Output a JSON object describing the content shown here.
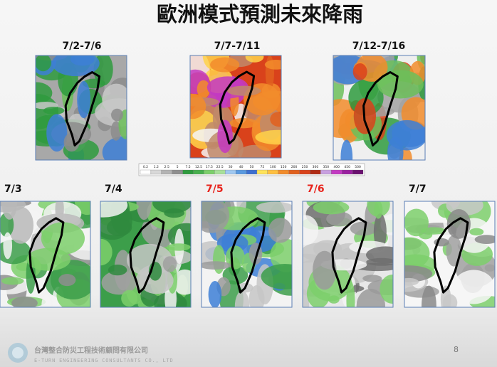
{
  "title": "歐洲模式預測未來降雨",
  "top_maps": [
    {
      "label": "7/2-7/6"
    },
    {
      "label": "7/7-7/11"
    },
    {
      "label": "7/12-7/16"
    }
  ],
  "legend": {
    "ticks": [
      "0.2",
      "1.2",
      "2.5",
      "5",
      "7.5",
      "12.5",
      "17.5",
      "22.5",
      "30",
      "40",
      "50",
      "75",
      "100",
      "150",
      "200",
      "250",
      "300",
      "350",
      "400",
      "450",
      "500"
    ]
  },
  "bottom_maps": [
    {
      "label": "7/3",
      "color": "#111111"
    },
    {
      "label": "7/4",
      "color": "#111111"
    },
    {
      "label": "7/5",
      "color": "#e8231c"
    },
    {
      "label": "7/6",
      "color": "#e8231c"
    },
    {
      "label": "7/7",
      "color": "#111111"
    }
  ],
  "footer": {
    "company": "台灣整合防災工程技術顧問有限公司",
    "company_english": "E-TURN ENGINEERING CONSULTANTS CO., LTD",
    "page_number": "8"
  }
}
